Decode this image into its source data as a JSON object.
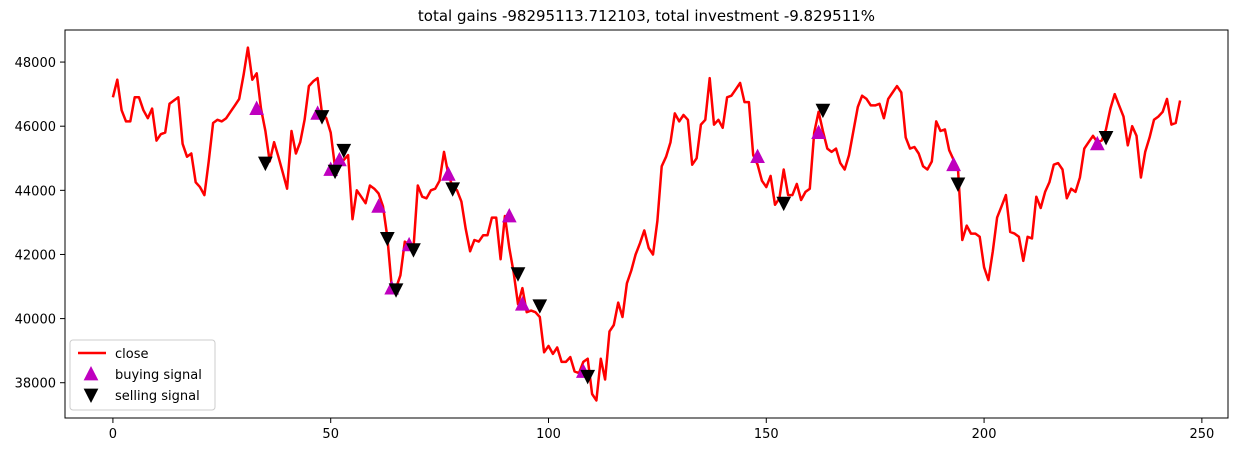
{
  "chart_data": {
    "type": "line",
    "title": "total gains -98295113.712103, total investment -9.829511%",
    "xlabel": "",
    "ylabel": "",
    "xlim": [
      -11,
      256
    ],
    "ylim": [
      36900,
      49000
    ],
    "x_ticks": [
      0,
      50,
      100,
      150,
      200,
      250
    ],
    "y_ticks": [
      38000,
      40000,
      42000,
      44000,
      46000,
      48000
    ],
    "grid": false,
    "legend_position": "lower-left",
    "colors": {
      "close": "#ff0000",
      "buy": "#bf00bf",
      "sell": "#000000"
    },
    "series": [
      {
        "name": "close",
        "kind": "line",
        "x": [
          0,
          1,
          2,
          3,
          4,
          5,
          6,
          7,
          8,
          9,
          10,
          11,
          12,
          13,
          14,
          15,
          16,
          17,
          18,
          19,
          20,
          21,
          22,
          23,
          24,
          25,
          26,
          27,
          28,
          29,
          30,
          31,
          32,
          33,
          34,
          35,
          36,
          37,
          38,
          39,
          40,
          41,
          42,
          43,
          44,
          45,
          46,
          47,
          48,
          49,
          50,
          51,
          52,
          53,
          54,
          55,
          56,
          57,
          58,
          59,
          60,
          61,
          62,
          63,
          64,
          65,
          66,
          67,
          68,
          69,
          70,
          71,
          72,
          73,
          74,
          75,
          76,
          77,
          78,
          79,
          80,
          81,
          82,
          83,
          84,
          85,
          86,
          87,
          88,
          89,
          90,
          91,
          92,
          93,
          94,
          95,
          96,
          97,
          98,
          99,
          100,
          101,
          102,
          103,
          104,
          105,
          106,
          107,
          108,
          109,
          110,
          111,
          112,
          113,
          114,
          115,
          116,
          117,
          118,
          119,
          120,
          121,
          122,
          123,
          124,
          125,
          126,
          127,
          128,
          129,
          130,
          131,
          132,
          133,
          134,
          135,
          136,
          137,
          138,
          139,
          140,
          141,
          142,
          143,
          144,
          145,
          146,
          147,
          148,
          149,
          150,
          151,
          152,
          153,
          154,
          155,
          156,
          157,
          158,
          159,
          160,
          161,
          162,
          163,
          164,
          165,
          166,
          167,
          168,
          169,
          170,
          171,
          172,
          173,
          174,
          175,
          176,
          177,
          178,
          179,
          180,
          181,
          182,
          183,
          184,
          185,
          186,
          187,
          188,
          189,
          190,
          191,
          192,
          193,
          194,
          195,
          196,
          197,
          198,
          199,
          200,
          201,
          202,
          203,
          204,
          205,
          206,
          207,
          208,
          209,
          210,
          211,
          212,
          213,
          214,
          215,
          216,
          217,
          218,
          219,
          220,
          221,
          222,
          223,
          224,
          225,
          226,
          227,
          228,
          229,
          230,
          231,
          232,
          233,
          234,
          235,
          236,
          237,
          238,
          239,
          240,
          241,
          242,
          243,
          244,
          245
        ],
        "values": [
          46900,
          47450,
          46500,
          46150,
          46150,
          46900,
          46900,
          46500,
          46250,
          46550,
          45550,
          45750,
          45800,
          46700,
          46800,
          46900,
          45450,
          45050,
          45150,
          44250,
          44100,
          43850,
          44900,
          46100,
          46200,
          46150,
          46250,
          46450,
          46650,
          46850,
          47600,
          48450,
          47450,
          47650,
          46550,
          45850,
          44900,
          45500,
          45050,
          44550,
          44050,
          45850,
          45150,
          45500,
          46200,
          47250,
          47400,
          47500,
          46400,
          46250,
          45800,
          44700,
          44800,
          44950,
          45100,
          43100,
          44000,
          43800,
          43600,
          44150,
          44050,
          43900,
          43500,
          42550,
          41000,
          40950,
          41350,
          42400,
          42300,
          42200,
          44150,
          43800,
          43750,
          44000,
          44050,
          44300,
          45200,
          44500,
          44100,
          44000,
          43650,
          42800,
          42100,
          42450,
          42400,
          42600,
          42600,
          43150,
          43150,
          41850,
          43200,
          42200,
          41450,
          40450,
          40950,
          40200,
          40250,
          40200,
          40050,
          38950,
          39150,
          38900,
          39100,
          38650,
          38650,
          38800,
          38350,
          38300,
          38650,
          38750,
          37650,
          37450,
          38750,
          38100,
          39600,
          39800,
          40500,
          40050,
          41100,
          41500,
          42000,
          42350,
          42750,
          42200,
          42000,
          43050,
          44750,
          45050,
          45500,
          46400,
          46150,
          46350,
          46200,
          44800,
          45000,
          46050,
          46200,
          47500,
          46050,
          46200,
          45950,
          46900,
          46950,
          47150,
          47350,
          46750,
          46750,
          45100,
          44800,
          44300,
          44100,
          44450,
          43550,
          43750,
          44650,
          43850,
          43850,
          44200,
          43700,
          43950,
          44050,
          45800,
          46450,
          45850,
          45300,
          45200,
          45300,
          44850,
          44650,
          45100,
          45850,
          46600,
          46950,
          46850,
          46650,
          46650,
          46700,
          46250,
          46850,
          47050,
          47250,
          47050,
          45650,
          45300,
          45350,
          45150,
          44750,
          44650,
          44900,
          46150,
          45850,
          45900,
          45250,
          44950,
          44700,
          42450,
          42900,
          42650,
          42650,
          42550,
          41600,
          41200,
          42100,
          43150,
          43500,
          43850,
          42700,
          42650,
          42550,
          41800,
          42550,
          42500,
          43800,
          43450,
          43950,
          44250,
          44800,
          44850,
          44650,
          43750,
          44050,
          43950,
          44400,
          45300,
          45500,
          45700,
          45500,
          45550,
          45900,
          46550,
          47000,
          46650,
          46300,
          45400,
          46000,
          45700,
          44400,
          45200,
          45650,
          46200,
          46300,
          46450,
          46850,
          46050,
          46100,
          46800
        ]
      },
      {
        "name": "buying signal",
        "kind": "marker-up",
        "x": [
          33,
          47,
          50,
          52,
          61,
          64,
          68,
          77,
          91,
          94,
          108,
          148,
          162,
          193,
          226
        ],
        "values": [
          46550,
          46400,
          44650,
          44950,
          43500,
          40950,
          42300,
          44500,
          43200,
          40450,
          38350,
          45050,
          45800,
          44800,
          45450
        ]
      },
      {
        "name": "selling signal",
        "kind": "marker-down",
        "x": [
          35,
          48,
          51,
          53,
          63,
          65,
          69,
          78,
          93,
          98,
          109,
          154,
          163,
          194,
          228
        ],
        "values": [
          44850,
          46300,
          44600,
          45250,
          42500,
          40900,
          42150,
          44050,
          41400,
          40400,
          38200,
          43600,
          46500,
          44200,
          45650
        ]
      }
    ]
  }
}
